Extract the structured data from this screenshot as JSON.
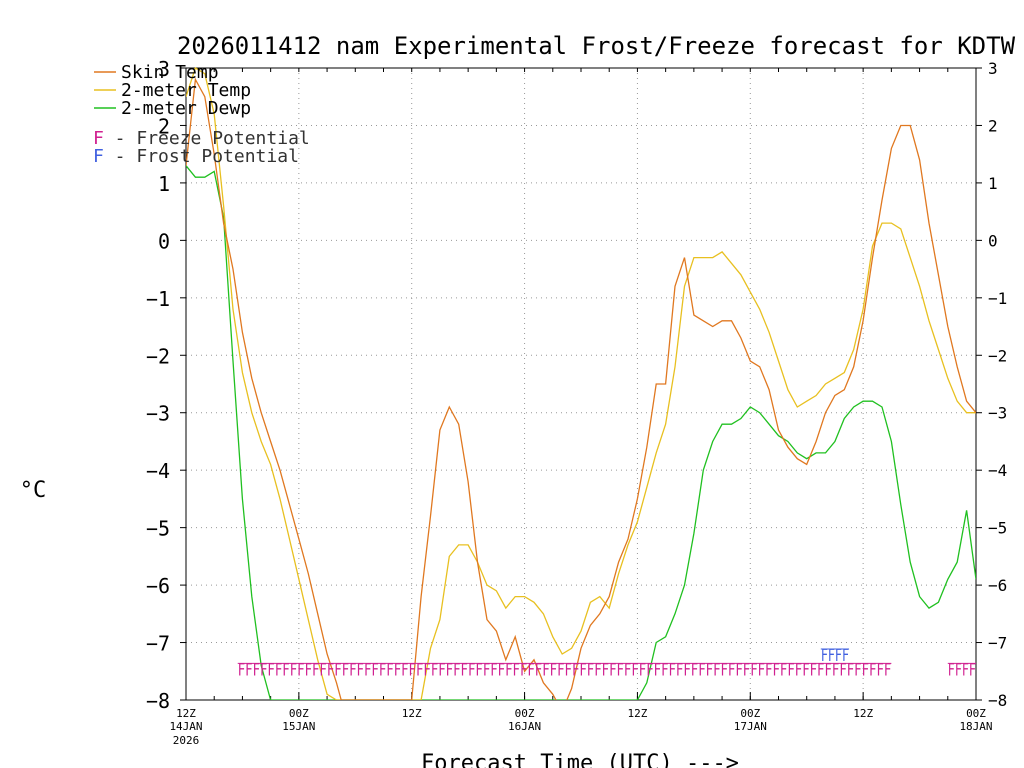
{
  "chart_data": {
    "type": "line",
    "title": "2026011412 nam Experimental Frost/Freeze forecast for KDTW",
    "xlabel": "Forecast Time (UTC) --->",
    "ylabel": "°C",
    "ylim": [
      -8,
      3
    ],
    "xlim": [
      0,
      84
    ],
    "grid": true,
    "legend_position": "top-left",
    "x_ticks": [
      {
        "h": 0,
        "top": "12Z",
        "mid": "14JAN",
        "bot": "2026"
      },
      {
        "h": 12,
        "top": "00Z",
        "mid": "15JAN",
        "bot": ""
      },
      {
        "h": 24,
        "top": "12Z",
        "mid": "",
        "bot": ""
      },
      {
        "h": 36,
        "top": "00Z",
        "mid": "16JAN",
        "bot": ""
      },
      {
        "h": 48,
        "top": "12Z",
        "mid": "",
        "bot": ""
      },
      {
        "h": 60,
        "top": "00Z",
        "mid": "17JAN",
        "bot": ""
      },
      {
        "h": 72,
        "top": "12Z",
        "mid": "",
        "bot": ""
      },
      {
        "h": 84,
        "top": "00Z",
        "mid": "18JAN",
        "bot": ""
      }
    ],
    "y_ticks": [
      3,
      2,
      1,
      0,
      -1,
      -2,
      -3,
      -4,
      -5,
      -6,
      -7,
      -8
    ],
    "series": [
      {
        "name": "Skin Temp",
        "color": "#e07820",
        "x": [
          0,
          1,
          2,
          3,
          4,
          5,
          6,
          7,
          8,
          9,
          10,
          11,
          12,
          13,
          14,
          15,
          16,
          16.5,
          17,
          18,
          19,
          20,
          21,
          22,
          23,
          24,
          25,
          26,
          27,
          28,
          29,
          30,
          31,
          32,
          33,
          34,
          35,
          36,
          37,
          38,
          39,
          40,
          41,
          42,
          43,
          44,
          45,
          46,
          47,
          48,
          49,
          50,
          51,
          52,
          53,
          54,
          55,
          56,
          57,
          58,
          59,
          60,
          61,
          62,
          63,
          64,
          65,
          66,
          67,
          68,
          69,
          70,
          71,
          72,
          73,
          74,
          75,
          76,
          77,
          78,
          79,
          80,
          81,
          82,
          83,
          84
        ],
        "y": [
          1.3,
          2.8,
          2.5,
          1.5,
          0.3,
          -0.5,
          -1.6,
          -2.4,
          -3.0,
          -3.5,
          -4.0,
          -4.6,
          -5.2,
          -5.8,
          -6.5,
          -7.2,
          -7.7,
          -8.0,
          -8.0,
          -8.0,
          -8.0,
          -8.0,
          -8.0,
          -8.0,
          -8.0,
          -8.0,
          -6.2,
          -4.8,
          -3.3,
          -2.9,
          -3.2,
          -4.2,
          -5.6,
          -6.6,
          -6.8,
          -7.3,
          -6.9,
          -7.5,
          -7.3,
          -7.7,
          -7.9,
          -8.2,
          -7.8,
          -7.1,
          -6.7,
          -6.5,
          -6.2,
          -5.6,
          -5.2,
          -4.5,
          -3.6,
          -2.5,
          -2.5,
          -0.8,
          -0.3,
          -1.3,
          -1.4,
          -1.5,
          -1.4,
          -1.4,
          -1.7,
          -2.1,
          -2.2,
          -2.6,
          -3.3,
          -3.6,
          -3.8,
          -3.9,
          -3.5,
          -3.0,
          -2.7,
          -2.6,
          -2.2,
          -1.4,
          -0.3,
          0.7,
          1.6,
          2.0,
          2.0,
          1.4,
          0.3,
          -0.6,
          -1.5,
          -2.2,
          -2.8,
          -3.0
        ]
      },
      {
        "name": "2-meter Temp",
        "color": "#e8c020",
        "x": [
          0,
          1,
          2,
          3,
          4,
          5,
          6,
          7,
          8,
          9,
          10,
          11,
          12,
          13,
          14,
          15,
          16,
          16.5,
          17,
          18,
          19,
          20,
          21,
          22,
          23,
          24,
          25,
          26,
          27,
          28,
          29,
          30,
          31,
          32,
          33,
          34,
          35,
          36,
          37,
          38,
          39,
          40,
          41,
          42,
          43,
          44,
          45,
          46,
          47,
          48,
          49,
          50,
          51,
          52,
          53,
          54,
          55,
          56,
          57,
          58,
          59,
          60,
          61,
          62,
          63,
          64,
          65,
          66,
          67,
          68,
          69,
          70,
          71,
          72,
          73,
          74,
          75,
          76,
          77,
          78,
          79,
          80,
          81,
          82,
          83,
          84
        ],
        "y": [
          2.5,
          3.0,
          2.9,
          2.2,
          0.6,
          -1.2,
          -2.3,
          -3.0,
          -3.5,
          -3.9,
          -4.5,
          -5.2,
          -5.9,
          -6.6,
          -7.3,
          -7.9,
          -8.0,
          -8.0,
          -8.0,
          -8.0,
          -8.0,
          -8.0,
          -8.0,
          -8.0,
          -8.0,
          -8.0,
          -8.0,
          -7.1,
          -6.6,
          -5.5,
          -5.3,
          -5.3,
          -5.6,
          -6.0,
          -6.1,
          -6.4,
          -6.2,
          -6.2,
          -6.3,
          -6.5,
          -6.9,
          -7.2,
          -7.1,
          -6.8,
          -6.3,
          -6.2,
          -6.4,
          -5.8,
          -5.3,
          -4.9,
          -4.3,
          -3.7,
          -3.2,
          -2.2,
          -0.8,
          -0.3,
          -0.3,
          -0.3,
          -0.2,
          -0.4,
          -0.6,
          -0.9,
          -1.2,
          -1.6,
          -2.1,
          -2.6,
          -2.9,
          -2.8,
          -2.7,
          -2.5,
          -2.4,
          -2.3,
          -1.9,
          -1.2,
          -0.1,
          0.3,
          0.3,
          0.2,
          -0.3,
          -0.8,
          -1.4,
          -1.9,
          -2.4,
          -2.8,
          -3.0,
          -3.0
        ]
      },
      {
        "name": "2-meter Dewp",
        "color": "#20c020",
        "x": [
          0,
          1,
          2,
          3,
          4,
          5,
          6,
          7,
          8,
          9,
          10,
          11,
          12,
          13,
          14,
          15,
          16,
          17,
          18,
          19,
          20,
          21,
          22,
          23,
          24,
          25,
          26,
          27,
          28,
          29,
          30,
          31,
          32,
          33,
          34,
          35,
          36,
          37,
          38,
          39,
          40,
          41,
          42,
          43,
          44,
          45,
          46,
          47,
          48,
          49,
          50,
          51,
          52,
          53,
          54,
          55,
          56,
          57,
          58,
          59,
          60,
          61,
          62,
          63,
          64,
          65,
          66,
          67,
          68,
          69,
          70,
          71,
          72,
          73,
          74,
          75,
          76,
          77,
          78,
          79,
          80,
          81,
          82,
          83,
          84
        ],
        "y": [
          1.3,
          1.1,
          1.1,
          1.2,
          0.4,
          -2.1,
          -4.5,
          -6.2,
          -7.4,
          -8.0,
          -8.0,
          -8.0,
          -8.0,
          -8.0,
          -8.0,
          -8.0,
          -8.0,
          -8.0,
          -8.0,
          -8.0,
          -8.0,
          -8.0,
          -8.0,
          -8.0,
          -8.0,
          -8.0,
          -8.0,
          -8.0,
          -8.0,
          -8.0,
          -8.0,
          -8.0,
          -8.0,
          -8.0,
          -8.0,
          -8.0,
          -8.0,
          -8.0,
          -8.0,
          -8.0,
          -8.0,
          -8.0,
          -8.0,
          -8.0,
          -8.0,
          -8.0,
          -8.0,
          -8.0,
          -8.0,
          -7.7,
          -7.0,
          -6.9,
          -6.5,
          -6.0,
          -5.1,
          -4.0,
          -3.5,
          -3.2,
          -3.2,
          -3.1,
          -2.9,
          -3.0,
          -3.2,
          -3.4,
          -3.5,
          -3.7,
          -3.8,
          -3.7,
          -3.7,
          -3.5,
          -3.1,
          -2.9,
          -2.8,
          -2.8,
          -2.9,
          -3.5,
          -4.6,
          -5.6,
          -6.2,
          -6.4,
          -6.3,
          -5.9,
          -5.6,
          -4.7,
          -5.9
        ]
      }
    ],
    "freeze_potential": {
      "label": "F - Freeze Potential",
      "char": "F",
      "color": "#d02090",
      "y": -7.45,
      "ranges": [
        [
          5.5,
          75
        ],
        [
          81,
          84
        ]
      ]
    },
    "frost_potential": {
      "label": "F - Frost Potential",
      "char": "F",
      "color": "#4060e0",
      "y": -7.2,
      "ranges": [
        [
          67.5,
          70.5
        ]
      ]
    },
    "fff_label": "FFF"
  }
}
